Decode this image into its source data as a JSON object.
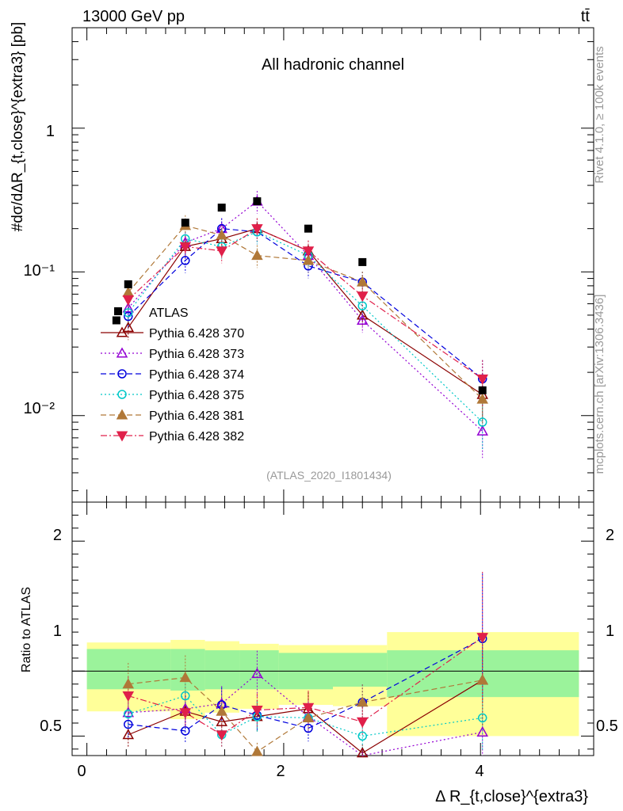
{
  "header": {
    "energy_label": "13000 GeV pp",
    "process_label": "tt̄"
  },
  "side_labels": {
    "rivet": "Rivet 4.1.0, ≥ 100k events",
    "source": "mcplots.cern.ch [arXiv:1306.3436]"
  },
  "main_panel": {
    "title": "All hadronic channel",
    "analysis_id": "(ATLAS_2020_I1801434)",
    "y_axis_label": "#dσ/dΔR_{t,close}^{extra3} [pb]",
    "y_scale": "log",
    "ylim": [
      0.0025,
      5.0
    ],
    "y_tick_labels": [
      "1",
      "10⁻¹",
      "10⁻²"
    ]
  },
  "ratio_panel": {
    "y_axis_label": "Ratio to ATLAS",
    "ylim": [
      0.35,
      2.3
    ],
    "y_tick_labels": [
      "0.5",
      "1",
      "2"
    ]
  },
  "x_axis": {
    "label": "Δ R_{t,close}^{extra3}",
    "xlim": [
      -0.15,
      5.15
    ],
    "tick_labels": [
      "0",
      "2",
      "4"
    ]
  },
  "chart_data": {
    "type": "scatter",
    "x_bin_edges": [
      0.0,
      0.85,
      1.2,
      1.55,
      1.95,
      2.5,
      3.05,
      5.0
    ],
    "x": [
      0.42,
      1.0,
      1.37,
      1.73,
      2.25,
      2.8,
      4.02
    ],
    "data": {
      "name": "ATLAS",
      "values": [
        0.082,
        0.22,
        0.28,
        0.31,
        0.2,
        0.117,
        0.015
      ],
      "extra_marker": {
        "x": 0.3,
        "value": 0.046
      },
      "ratio_band_inner": [
        [
          0.86,
          1.17
        ],
        [
          0.85,
          1.17
        ],
        [
          0.86,
          1.16
        ],
        [
          0.86,
          1.16
        ],
        [
          0.86,
          1.14
        ],
        [
          0.88,
          1.14
        ],
        [
          0.8,
          1.16
        ]
      ],
      "ratio_band_outer": [
        [
          0.69,
          1.22
        ],
        [
          0.63,
          1.24
        ],
        [
          0.68,
          1.23
        ],
        [
          0.71,
          1.21
        ],
        [
          0.74,
          1.2
        ],
        [
          0.73,
          1.2
        ],
        [
          0.5,
          1.3
        ]
      ]
    },
    "series": [
      {
        "name": "Pythia 6.428 370",
        "color": "#8b0000",
        "marker": "triangle-up-open",
        "dash": "solid",
        "values": [
          0.041,
          0.15,
          0.17,
          0.2,
          0.14,
          0.05,
          0.014
        ],
        "ratio": [
          0.51,
          0.69,
          0.61,
          0.65,
          0.71,
          0.37,
          0.93
        ]
      },
      {
        "name": "Pythia 6.428 373",
        "color": "#9400d3",
        "marker": "triangle-up-open",
        "dash": "dotted",
        "values": [
          0.056,
          0.16,
          0.2,
          0.31,
          0.13,
          0.046,
          0.0078
        ],
        "ratio": [
          0.68,
          0.71,
          0.75,
          0.98,
          0.65,
          0.34,
          0.53
        ]
      },
      {
        "name": "Pythia 6.428 374",
        "color": "#0000dd",
        "marker": "circle-open",
        "dash": "dashed",
        "values": [
          0.049,
          0.12,
          0.2,
          0.19,
          0.11,
          0.085,
          0.018
        ],
        "ratio": [
          0.59,
          0.54,
          0.74,
          0.66,
          0.56,
          0.76,
          1.25
        ]
      },
      {
        "name": "Pythia 6.428 375",
        "color": "#00c8c8",
        "marker": "circle-open",
        "dash": "dotted",
        "values": [
          0.052,
          0.17,
          0.15,
          0.19,
          0.13,
          0.058,
          0.009
        ],
        "ratio": [
          0.67,
          0.81,
          0.51,
          0.65,
          0.64,
          0.5,
          0.64
        ]
      },
      {
        "name": "Pythia 6.428 381",
        "color": "#b07838",
        "marker": "triangle-up-filled",
        "dash": "dashed",
        "values": [
          0.072,
          0.21,
          0.18,
          0.13,
          0.12,
          0.085,
          0.013
        ],
        "ratio": [
          0.9,
          0.95,
          0.69,
          0.38,
          0.64,
          0.76,
          0.93
        ]
      },
      {
        "name": "Pythia 6.428 382",
        "color": "#e0204a",
        "marker": "triangle-down-filled",
        "dash": "dashdot",
        "values": [
          0.064,
          0.15,
          0.14,
          0.2,
          0.14,
          0.068,
          0.018
        ],
        "ratio": [
          0.81,
          0.68,
          0.51,
          0.7,
          0.72,
          0.61,
          1.26
        ]
      }
    ],
    "legend_placement": "middle-left"
  },
  "colors": {
    "band_inner": "#9bf39b",
    "band_outer": "#ffff99",
    "data_marker": "#000000",
    "muted_text": "#999999"
  }
}
